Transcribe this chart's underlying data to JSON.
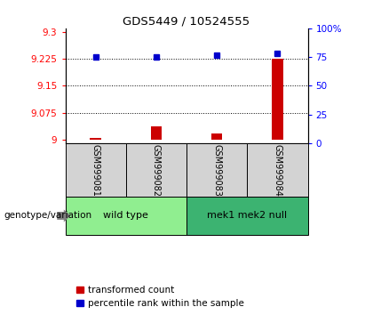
{
  "title": "GDS5449 / 10524555",
  "samples": [
    "GSM999081",
    "GSM999082",
    "GSM999083",
    "GSM999084"
  ],
  "groups": [
    {
      "label": "wild type",
      "indices": [
        0,
        1
      ],
      "color": "#90EE90"
    },
    {
      "label": "mek1 mek2 null",
      "indices": [
        2,
        3
      ],
      "color": "#3CB371"
    }
  ],
  "bar_values": [
    9.005,
    9.038,
    9.018,
    9.225
  ],
  "dot_values": [
    75,
    75,
    77,
    78
  ],
  "ylim_left": [
    8.99,
    9.31
  ],
  "ylim_right": [
    0,
    100
  ],
  "yticks_left": [
    9.0,
    9.075,
    9.15,
    9.225,
    9.3
  ],
  "yticks_right": [
    0,
    25,
    50,
    75,
    100
  ],
  "ytick_labels_left": [
    "9",
    "9.075",
    "9.15",
    "9.225",
    "9.3"
  ],
  "ytick_labels_right": [
    "0",
    "25",
    "50",
    "75",
    "100%"
  ],
  "bar_color": "#CC0000",
  "dot_color": "#0000CC",
  "bar_bottom": 9.0,
  "grid_ticks": [
    9.075,
    9.15,
    9.225
  ],
  "legend_red_label": "transformed count",
  "legend_blue_label": "percentile rank within the sample",
  "genotype_label": "genotype/variation",
  "sample_box_color": "#D3D3D3"
}
